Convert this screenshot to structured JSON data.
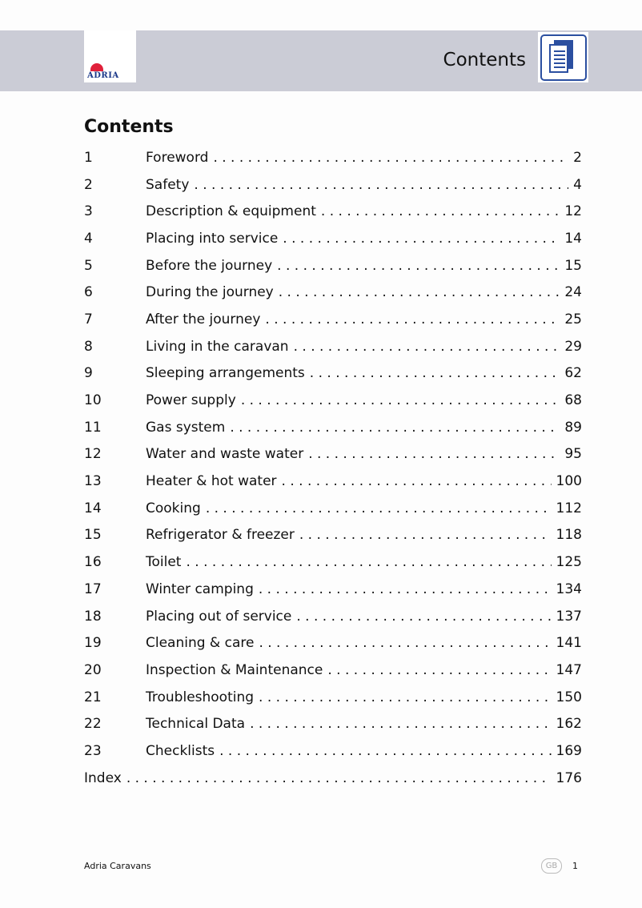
{
  "header": {
    "title": "Contents",
    "logo_text": "ADRIA"
  },
  "heading": "Contents",
  "toc": [
    {
      "num": "1",
      "title": "Foreword",
      "page": "2"
    },
    {
      "num": "2",
      "title": "Safety",
      "page": "4"
    },
    {
      "num": "3",
      "title": "Description & equipment",
      "page": "12"
    },
    {
      "num": "4",
      "title": "Placing into service",
      "page": "14"
    },
    {
      "num": "5",
      "title": "Before the journey",
      "page": "15"
    },
    {
      "num": "6",
      "title": "During the journey",
      "page": "24"
    },
    {
      "num": "7",
      "title": "After the journey",
      "page": "25"
    },
    {
      "num": "8",
      "title": "Living in the caravan",
      "page": "29"
    },
    {
      "num": "9",
      "title": "Sleeping arrangements",
      "page": "62"
    },
    {
      "num": "10",
      "title": "Power supply",
      "page": "68"
    },
    {
      "num": "11",
      "title": "Gas system",
      "page": "89"
    },
    {
      "num": "12",
      "title": "Water and waste water",
      "page": "95"
    },
    {
      "num": "13",
      "title": "Heater & hot water",
      "page": "100"
    },
    {
      "num": "14",
      "title": "Cooking",
      "page": "112"
    },
    {
      "num": "15",
      "title": "Refrigerator & freezer",
      "page": "118"
    },
    {
      "num": "16",
      "title": "Toilet",
      "page": "125"
    },
    {
      "num": "17",
      "title": "Winter camping",
      "page": "134"
    },
    {
      "num": "18",
      "title": "Placing out of service",
      "page": "137"
    },
    {
      "num": "19",
      "title": "Cleaning & care",
      "page": "141"
    },
    {
      "num": "20",
      "title": "Inspection & Maintenance",
      "page": "147"
    },
    {
      "num": "21",
      "title": "Troubleshooting",
      "page": "150"
    },
    {
      "num": "22",
      "title": "Technical Data",
      "page": "162"
    },
    {
      "num": "23",
      "title": "Checklists",
      "page": "169"
    }
  ],
  "index": {
    "title": "Index",
    "page": "176"
  },
  "footer": {
    "left": "Adria Caravans",
    "lang": "GB",
    "page": "1"
  }
}
